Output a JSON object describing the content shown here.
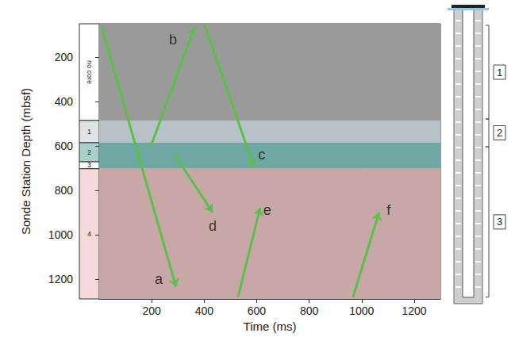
{
  "chart_data": {
    "type": "seismic_section",
    "x_label": "Time (ms)",
    "y_label": "Sonde Station Depth (mbsf)",
    "xlim": [
      0,
      1300
    ],
    "xticks": [
      200,
      400,
      600,
      800,
      1000,
      1200
    ],
    "ylim": [
      50,
      1290
    ],
    "yticks": [
      200,
      400,
      600,
      800,
      1000,
      1200
    ],
    "y_inverted": true,
    "grid": true,
    "zones": [
      {
        "top": 50,
        "base": 486,
        "color": "#9a9a9a"
      },
      {
        "top": 486,
        "base": 586,
        "color": "#b7c2c6"
      },
      {
        "top": 586,
        "base": 703,
        "color": "#6fa8a3"
      },
      {
        "top": 703,
        "base": 1290,
        "color": "#c8a7a7"
      }
    ],
    "annotation_color": "#5cbf4a",
    "annotations": [
      {
        "label": "a",
        "label_at": [
          227,
          1200
        ],
        "from": [
          6,
          50
        ],
        "to": [
          293,
          1236
        ]
      },
      {
        "label": "b",
        "label_at": [
          281,
          121
        ],
        "from": [
          196,
          604
        ],
        "to": [
          363,
          68
        ]
      },
      {
        "label": "c",
        "label_at": [
          619,
          639
        ],
        "from": [
          402,
          57
        ],
        "to": [
          589,
          693
        ]
      },
      {
        "label": "d",
        "label_at": [
          432,
          960
        ],
        "from": [
          287,
          639
        ],
        "to": [
          432,
          900
        ]
      },
      {
        "label": "e",
        "label_at": [
          640,
          889
        ],
        "from": [
          529,
          1282
        ],
        "to": [
          613,
          879
        ]
      },
      {
        "label": "f",
        "label_at": [
          1103,
          889
        ],
        "from": [
          967,
          1282
        ],
        "to": [
          1066,
          900
        ]
      }
    ],
    "lithology_units": [
      {
        "label": "no core",
        "top": 50,
        "base": 486,
        "color": "#ffffff"
      },
      {
        "label": "1",
        "top": 486,
        "base": 586,
        "color": "#dfe3e6"
      },
      {
        "label": "2",
        "top": 586,
        "base": 672,
        "color": "#a9cfcb"
      },
      {
        "label": "3",
        "top": 672,
        "base": 703,
        "color": "#ffffff"
      },
      {
        "label": "4",
        "top": 703,
        "base": 1290,
        "color": "#f6dada"
      }
    ],
    "borehole_sections": [
      {
        "label": "1",
        "top": 57,
        "base": 479
      },
      {
        "label": "2",
        "top": 479,
        "base": 604
      },
      {
        "label": "3",
        "top": 604,
        "base": 1282
      }
    ]
  }
}
